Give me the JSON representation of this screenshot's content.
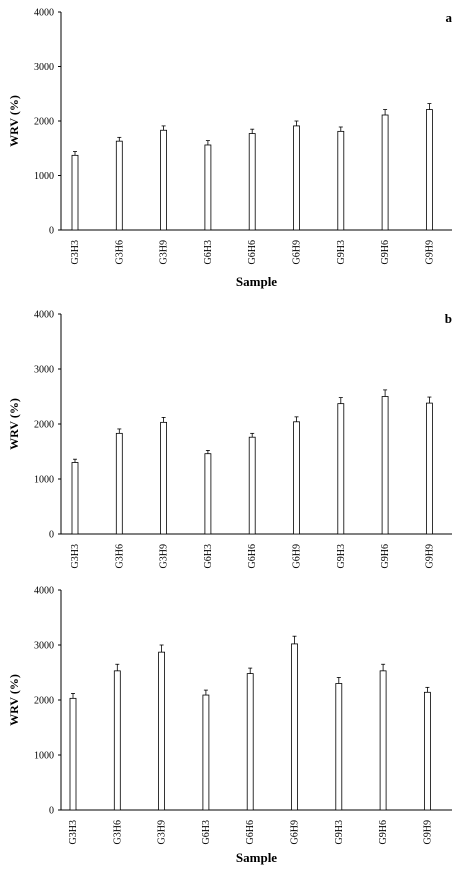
{
  "chart_data": [
    {
      "type": "bar",
      "panel_label": "a",
      "categories": [
        "G3H3",
        "G3H6",
        "G3H9",
        "G6H3",
        "G6H6",
        "G6H9",
        "G9H3",
        "G9H6",
        "G9H9"
      ],
      "values": [
        1370,
        1630,
        1830,
        1560,
        1770,
        1910,
        1810,
        2110,
        2210
      ],
      "errors": [
        70,
        70,
        80,
        80,
        80,
        90,
        80,
        100,
        110
      ],
      "ylabel": "WRV (%)",
      "xlabel": "Sample",
      "ylim": [
        0,
        4000
      ],
      "yticks": [
        "0",
        "1000",
        "2000",
        "3000",
        "4000"
      ]
    },
    {
      "type": "bar",
      "panel_label": "b",
      "categories": [
        "G3H3",
        "G3H6",
        "G3H9",
        "G6H3",
        "G6H6",
        "G6H9",
        "G9H3",
        "G9H6",
        "G9H9"
      ],
      "values": [
        1300,
        1830,
        2030,
        1460,
        1760,
        2040,
        2370,
        2500,
        2380
      ],
      "errors": [
        60,
        80,
        90,
        60,
        70,
        90,
        110,
        120,
        110
      ],
      "ylabel": "WRV (%)",
      "xlabel": "",
      "ylim": [
        0,
        4000
      ],
      "yticks": [
        "0",
        "1000",
        "2000",
        "3000",
        "4000"
      ]
    },
    {
      "type": "bar",
      "panel_label": "",
      "categories": [
        "G3H3",
        "G3H6",
        "G3H9",
        "G6H3",
        "G6H6",
        "G6H9",
        "G9H3",
        "G9H6",
        "G9H9"
      ],
      "values": [
        2030,
        2530,
        2870,
        2090,
        2480,
        3020,
        2300,
        2530,
        2140
      ],
      "errors": [
        90,
        120,
        130,
        90,
        100,
        140,
        110,
        120,
        90
      ],
      "ylabel": "WRV (%)",
      "xlabel": "Sample",
      "ylim": [
        0,
        4000
      ],
      "yticks": [
        "0",
        "1000",
        "2000",
        "3000",
        "4000"
      ]
    }
  ]
}
